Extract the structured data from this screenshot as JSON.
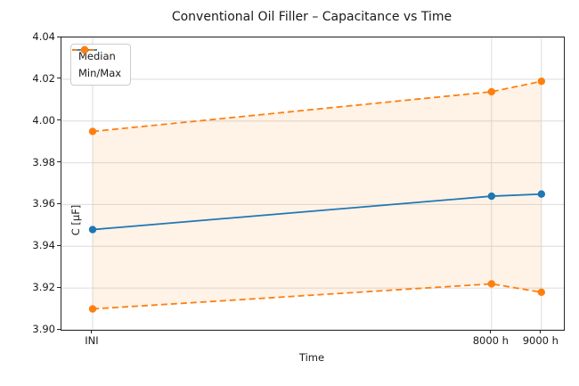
{
  "chart_data": {
    "type": "line",
    "title": "Conventional Oil Filler – Capacitance vs Time",
    "xlabel": "Time",
    "ylabel": "C [µF]",
    "x": [
      0,
      8000,
      9000
    ],
    "x_tick_labels": [
      "INI",
      "8000 h",
      "9000 h"
    ],
    "xlim": [
      -625,
      9450
    ],
    "ylim": [
      3.9,
      4.04
    ],
    "y_ticks": [
      3.9,
      3.92,
      3.94,
      3.96,
      3.98,
      4.0,
      4.02,
      4.04
    ],
    "series": [
      {
        "name": "Median",
        "role": "median",
        "color": "#1f77b4",
        "linestyle": "solid",
        "values": [
          3.948,
          3.964,
          3.965
        ]
      },
      {
        "name": "Min/Max",
        "role": "max",
        "color": "#ff7f0e",
        "linestyle": "dashed",
        "values": [
          3.995,
          4.014,
          4.019
        ]
      },
      {
        "name": "Min/Max",
        "role": "min",
        "color": "#ff7f0e",
        "linestyle": "dashed",
        "values": [
          3.91,
          3.922,
          3.918
        ]
      }
    ],
    "fill_between": {
      "upper": "max",
      "lower": "min",
      "color": "#ff7f0e",
      "opacity": 0.1
    },
    "legend": {
      "position": "upper left",
      "entries": [
        {
          "label": "Median",
          "color": "#1f77b4",
          "dashed": false
        },
        {
          "label": "Min/Max",
          "color": "#ff7f0e",
          "dashed": true
        }
      ]
    },
    "grid": true,
    "grid_color": "#dcdcdc",
    "spine_color": "#262626",
    "text_color": "#1a1a1a"
  }
}
